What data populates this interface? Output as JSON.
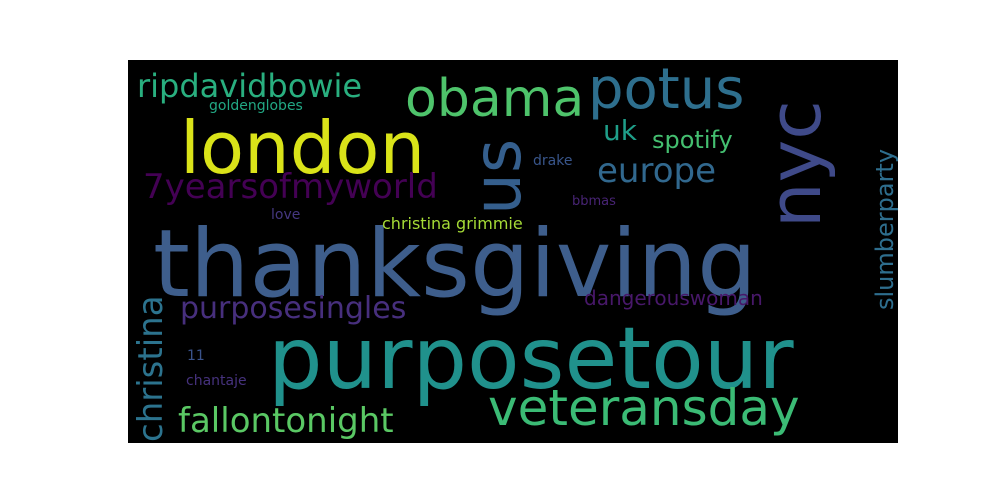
{
  "chart_data": {
    "type": "wordcloud",
    "background": "#000000",
    "colormap": "viridis",
    "words": [
      {
        "text": "thanksgiving",
        "color": "#3e5e8c"
      },
      {
        "text": "purposetour",
        "color": "#20918c"
      },
      {
        "text": "london",
        "color": "#dae319"
      },
      {
        "text": "us",
        "color": "#355f8d"
      },
      {
        "text": "nyc",
        "color": "#3f4a89"
      },
      {
        "text": "obama",
        "color": "#4ec36b"
      },
      {
        "text": "potus",
        "color": "#2e6f8e"
      },
      {
        "text": "veteransday",
        "color": "#3bbb75"
      },
      {
        "text": "ripdavidbowie",
        "color": "#29af7f"
      },
      {
        "text": "christina",
        "color": "#2c738e"
      },
      {
        "text": "fallontonight",
        "color": "#5ac864"
      },
      {
        "text": "7yearsofmyworld",
        "color": "#440154"
      },
      {
        "text": "europe",
        "color": "#31688e"
      },
      {
        "text": "purposesingles",
        "color": "#472f7d"
      },
      {
        "text": "uk",
        "color": "#1f9e89"
      },
      {
        "text": "spotify",
        "color": "#44bf70"
      },
      {
        "text": "slumberparty",
        "color": "#2e6e8e"
      },
      {
        "text": "dangerouswoman",
        "color": "#48186a"
      },
      {
        "text": "christina grimmie",
        "color": "#a5db36"
      },
      {
        "text": "goldenglobes",
        "color": "#22a884"
      },
      {
        "text": "drake",
        "color": "#39568c"
      },
      {
        "text": "love",
        "color": "#453781"
      },
      {
        "text": "bbmas",
        "color": "#482475"
      },
      {
        "text": "11",
        "color": "#3a538b"
      },
      {
        "text": "chantaje",
        "color": "#46327e"
      }
    ]
  }
}
